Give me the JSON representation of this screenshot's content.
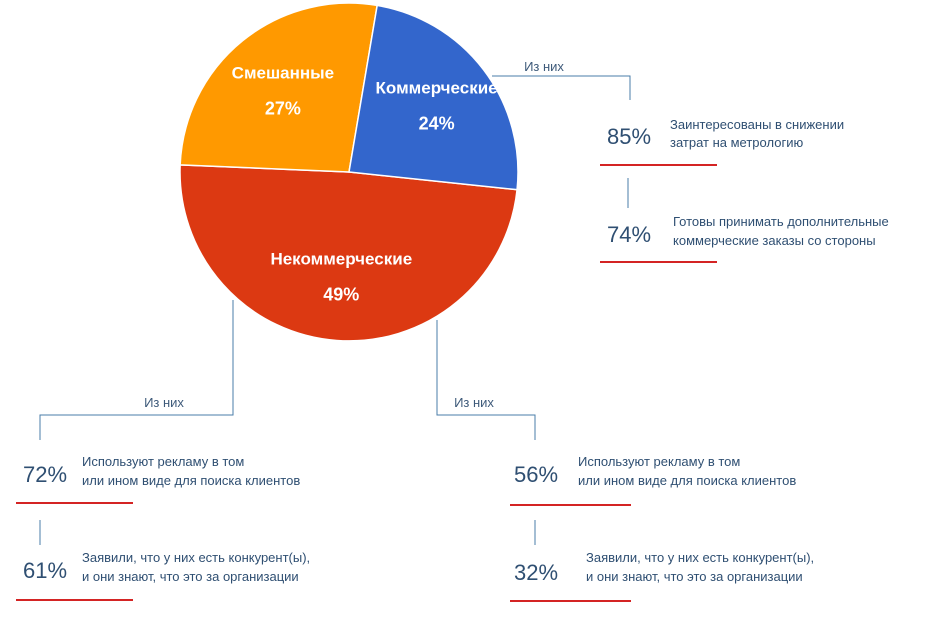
{
  "chart_data": {
    "type": "pie",
    "slices": [
      {
        "name": "Некоммерческие",
        "label": "49%",
        "value": 49,
        "color": "#dc3912"
      },
      {
        "name": "Смешанные",
        "label": "27%",
        "value": 27,
        "color": "#ff9900"
      },
      {
        "name": "Коммерческие",
        "label": "24%",
        "value": 24,
        "color": "#3366cc"
      }
    ]
  },
  "breakdowns": {
    "noncommercial": {
      "of_label": "Из них",
      "items": [
        {
          "pct": "85%",
          "line1": "Заинтересованы в снижении",
          "line2": "затрат на метрологию"
        },
        {
          "pct": "74%",
          "line1": "Готовы принимать дополнительные",
          "line2": "коммерческие заказы со стороны"
        }
      ]
    },
    "commercial": {
      "of_label": "Из них",
      "items": [
        {
          "pct": "72%",
          "line1": "Используют рекламу  в том",
          "line2": "или ином виде для поиска клиентов"
        },
        {
          "pct": "61%",
          "line1": "Заявили, что у них есть конкурент(ы),",
          "line2": "и они знают, что это за организации"
        }
      ]
    },
    "mixed": {
      "of_label": "Из них",
      "items": [
        {
          "pct": "56%",
          "line1": "Используют рекламу  в том",
          "line2": "или ином виде для поиска клиентов"
        },
        {
          "pct": "32%",
          "line1": "Заявили, что у них есть конкурент(ы),",
          "line2": "и они знают, что это за организации"
        }
      ]
    }
  }
}
